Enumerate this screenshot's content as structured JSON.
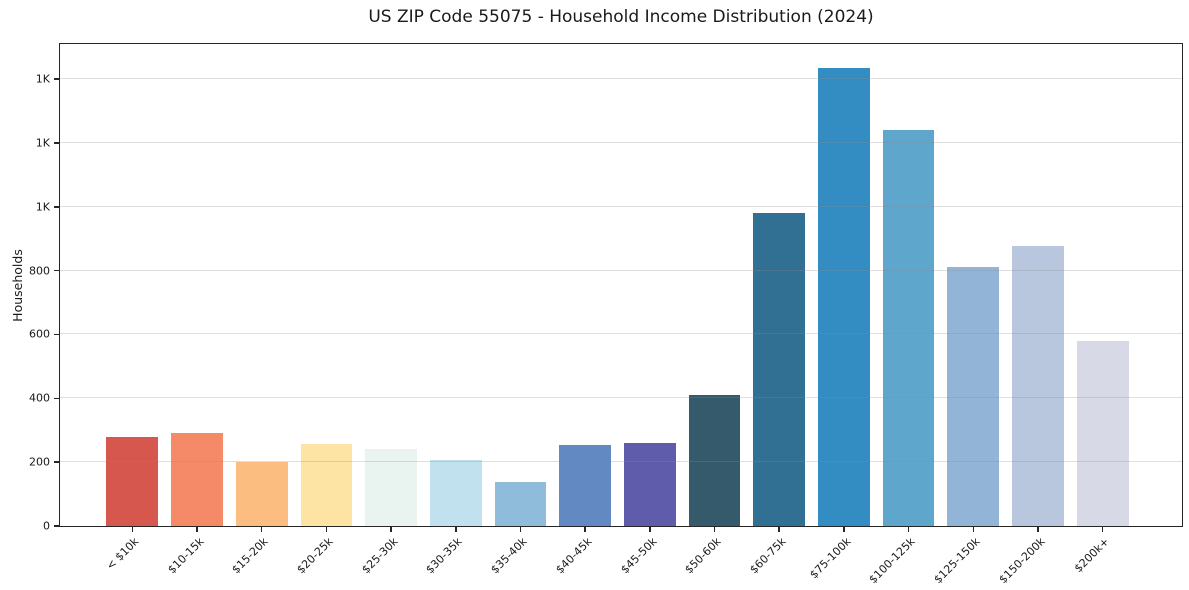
{
  "chart_data": {
    "type": "bar",
    "title": "US ZIP Code 55075 - Household Income Distribution (2024)",
    "xlabel": "",
    "ylabel": "Households",
    "categories": [
      "< $10k",
      "$10-15k",
      "$15-20k",
      "$20-25k",
      "$25-30k",
      "$30-35k",
      "$35-40k",
      "$40-45k",
      "$45-50k",
      "$50-60k",
      "$60-75k",
      "$75-100k",
      "$100-125k",
      "$125-150k",
      "$150-200k",
      "$200k+"
    ],
    "values": [
      280,
      290,
      200,
      258,
      240,
      207,
      138,
      255,
      260,
      410,
      980,
      1435,
      1240,
      810,
      878,
      580
    ],
    "bar_colors": [
      "#d5574e",
      "#f58a69",
      "#fbbd80",
      "#fde4a4",
      "#e9f4f1",
      "#c2e1ee",
      "#90bcdc",
      "#6389c2",
      "#5f5cab",
      "#345a6c",
      "#327093",
      "#338dc2",
      "#5fa6cc",
      "#92b5d7",
      "#b9c7de",
      "#d8d9e6"
    ],
    "ylim": [
      0,
      1510
    ],
    "yticks": [
      {
        "value": 0,
        "label": "0"
      },
      {
        "value": 200,
        "label": "200"
      },
      {
        "value": 400,
        "label": "400"
      },
      {
        "value": 600,
        "label": "600"
      },
      {
        "value": 800,
        "label": "800"
      },
      {
        "value": 1000,
        "label": "1K"
      },
      {
        "value": 1200,
        "label": "1K"
      },
      {
        "value": 1400,
        "label": "1K"
      }
    ],
    "grid": "horizontal",
    "legend": "none",
    "x_tick_rotation": 45
  },
  "colors": {
    "background": "#ffffff",
    "spine": "#262626",
    "gridline": "rgba(140,140,140,0.28)",
    "text": "#1a1a1a"
  }
}
